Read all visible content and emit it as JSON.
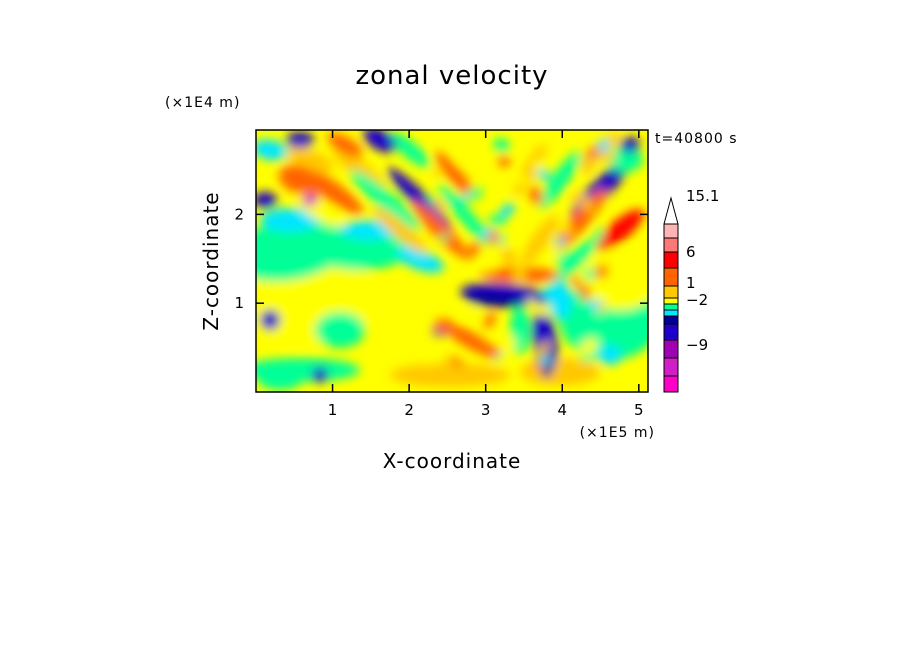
{
  "chart_data": {
    "type": "heatmap",
    "title": "zonal velocity",
    "xlabel": "X-coordinate",
    "ylabel": "Z-coordinate",
    "x_scale_label": "(×1E5 m)",
    "y_scale_label": "(×1E4 m)",
    "time_label": "t=40800 s",
    "x_ticks": [
      "1",
      "2",
      "3",
      "4",
      "5"
    ],
    "y_ticks": [
      "1",
      "2"
    ],
    "xlim": [
      0,
      5.12
    ],
    "ylim": [
      0,
      2.95
    ],
    "colorbar": {
      "tick_labels": [
        "15.1",
        "6",
        "1",
        "−2",
        "−9"
      ],
      "colors": [
        "#ff00c8",
        "#d21ec8",
        "#a000b4",
        "#1e00c8",
        "#000096",
        "#00e6ff",
        "#00ff96",
        "#ffff00",
        "#ffc800",
        "#ff6400",
        "#ff0000",
        "#ff7878",
        "#ffb4b4",
        "#ffffff"
      ]
    },
    "legend_placement": "right"
  }
}
